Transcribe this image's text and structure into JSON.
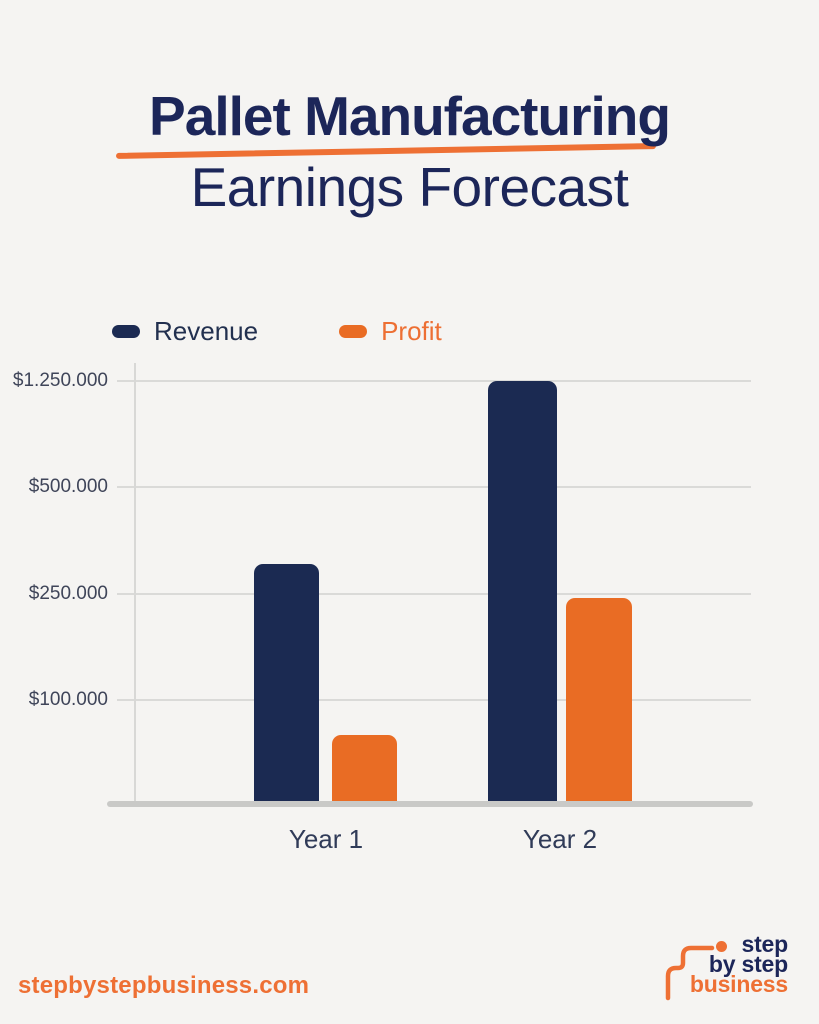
{
  "page": {
    "background": "#f5f4f2"
  },
  "colors": {
    "navy": "#1c2659",
    "bar_navy": "#1b2a52",
    "orange": "#ee7034",
    "bar_orange": "#e96c24",
    "axis_label": "#3f4559",
    "gridline": "#dadad8"
  },
  "title": {
    "line1": "Pallet Manufacturing",
    "line2": "Earnings Forecast"
  },
  "legend": [
    {
      "label": "Revenue",
      "swatch_color": "#1b2a52",
      "text_color": "#22304f"
    },
    {
      "label": "Profit",
      "swatch_color": "#e96c24",
      "text_color": "#ed6f33"
    }
  ],
  "chart_data": {
    "type": "bar",
    "title": "Pallet Manufacturing Earnings Forecast",
    "categories": [
      "Year 1",
      "Year 2"
    ],
    "series": [
      {
        "name": "Revenue",
        "color": "#1b2a52",
        "values": [
          320000,
          1250000
        ]
      },
      {
        "name": "Profit",
        "color": "#e96c24",
        "values": [
          80000,
          245000
        ]
      }
    ],
    "y_ticks": [
      {
        "label": "$1.250.000",
        "value": 1250000
      },
      {
        "label": "$500.000",
        "value": 500000
      },
      {
        "label": "$250.000",
        "value": 250000
      },
      {
        "label": "$100.000",
        "value": 100000
      }
    ],
    "xlabel": "",
    "ylabel": "",
    "axis_note": "non-linear y-axis: labeled ticks are equally spaced",
    "baseline_value": 40000,
    "grid": true,
    "legend_position": "top-left"
  },
  "footer": {
    "website": "stepbystepbusiness.com",
    "logo": {
      "line1": "step",
      "line2": "by step",
      "line3": "business"
    }
  }
}
